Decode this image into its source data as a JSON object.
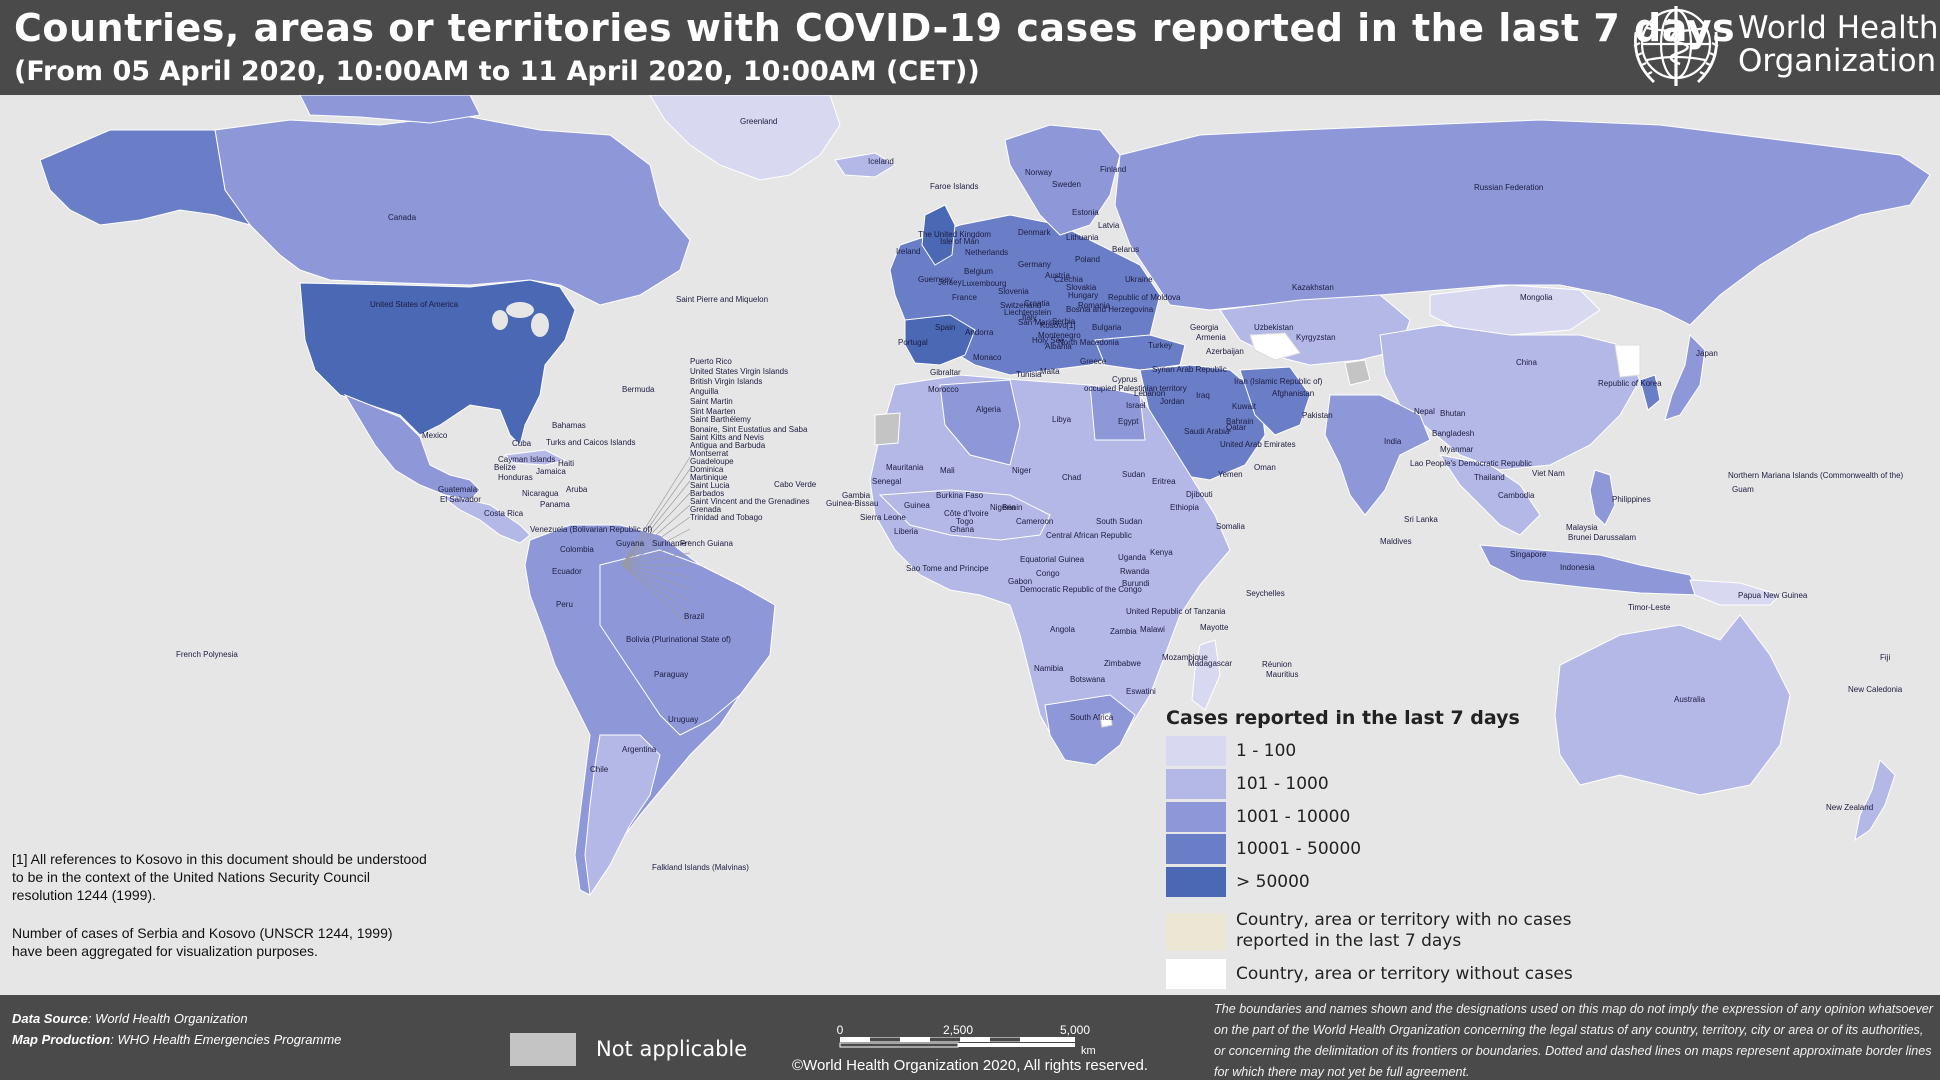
{
  "header": {
    "title": "Countries, areas or territories with COVID-19  cases reported in the last 7 days",
    "subtitle": "(From 05 April 2020, 10:00AM  to 11 April 2020, 10:00AM (CET))",
    "logo_text": "World Health\nOrganization"
  },
  "map": {
    "ocean_color": "#e6e6e6",
    "country_labels": [
      "Greenland",
      "Iceland",
      "Faroe Islands",
      "Norway",
      "Sweden",
      "Finland",
      "Estonia",
      "Latvia",
      "Lithuania",
      "Denmark",
      "The United Kingdom",
      "Ireland",
      "Netherlands",
      "Belarus",
      "Poland",
      "Germany",
      "Ukraine",
      "Czechia",
      "Slovakia",
      "Hungary",
      "Republic of Moldova",
      "Romania",
      "Bulgaria",
      "Serbia",
      "France",
      "Switzerland",
      "Italy",
      "Spain",
      "Portugal",
      "Andorra",
      "Greece",
      "Turkey",
      "Gibraltar",
      "Tunisia",
      "Malta",
      "Morocco",
      "Algeria",
      "Libya",
      "Egypt",
      "Cyprus",
      "Lebanon",
      "Syrian Arab Republic",
      "Israel",
      "Jordan",
      "Iraq",
      "Kuwait",
      "Bahrain",
      "Qatar",
      "Saudi Arabia",
      "United Arab Emirates",
      "Oman",
      "Yemen",
      "Georgia",
      "Armenia",
      "Azerbaijan",
      "Kazakhstan",
      "Uzbekistan",
      "Kyrgyzstan",
      "Iran (Islamic Republic of)",
      "Afghanistan",
      "Pakistan",
      "India",
      "Nepal",
      "Bhutan",
      "Bangladesh",
      "Sri Lanka",
      "Maldives",
      "Mongolia",
      "China",
      "Russian Federation",
      "Republic of Korea",
      "Japan",
      "Myanmar",
      "Lao People's Democratic Republic",
      "Thailand",
      "Viet Nam",
      "Cambodia",
      "Philippines",
      "Malaysia",
      "Singapore",
      "Brunei Darussalam",
      "Indonesia",
      "Timor-Leste",
      "Papua New Guinea",
      "Australia",
      "New Zealand",
      "Fiji",
      "New Caledonia",
      "Guam",
      "Northern Mariana Islands (Commonwealth of the)",
      "Canada",
      "United States of America",
      "Saint Pierre and Miquelon",
      "Bermuda",
      "Mexico",
      "Cuba",
      "Bahamas",
      "Turks and Caicos Islands",
      "Haiti",
      "Jamaica",
      "Cayman Islands",
      "Belize",
      "Honduras",
      "Guatemala",
      "El Salvador",
      "Nicaragua",
      "Costa Rica",
      "Panama",
      "Aruba",
      "Venezuela (Bolivarian Republic of)",
      "Colombia",
      "Ecuador",
      "Peru",
      "Brazil",
      "Bolivia (Plurinational State of)",
      "Paraguay",
      "Uruguay",
      "Argentina",
      "Chile",
      "Guyana",
      "Suriname",
      "French Guiana",
      "Falkland Islands (Malvinas)",
      "French Polynesia",
      "Puerto Rico",
      "United States Virgin Islands",
      "British Virgin Islands",
      "Anguilla",
      "Saint Martin",
      "Sint Maarten",
      "Saint Barthélemy",
      "Bonaire, Sint Eustatius and Saba",
      "Saint Kitts and Nevis",
      "Antigua and Barbuda",
      "Montserrat",
      "Guadeloupe",
      "Dominica",
      "Martinique",
      "Saint Lucia",
      "Barbados",
      "Saint Vincent and the Grenadines",
      "Grenada",
      "Trinidad and Tobago",
      "Cabo Verde",
      "Mauritania",
      "Mali",
      "Niger",
      "Chad",
      "Sudan",
      "Eritrea",
      "Djibouti",
      "Ethiopia",
      "Somalia",
      "Senegal",
      "Gambia",
      "Guinea-Bissau",
      "Guinea",
      "Sierra Leone",
      "Liberia",
      "Côte d'Ivoire",
      "Burkina Faso",
      "Ghana",
      "Togo",
      "Benin",
      "Nigeria",
      "Cameroon",
      "Central African Republic",
      "South Sudan",
      "Kenya",
      "Uganda",
      "Rwanda",
      "Burundi",
      "United Republic of Tanzania",
      "Democratic Republic of the Congo",
      "Congo",
      "Gabon",
      "Equatorial Guinea",
      "Sao Tome and Principe",
      "Angola",
      "Zambia",
      "Malawi",
      "Mozambique",
      "Zimbabwe",
      "Namibia",
      "Botswana",
      "South Africa",
      "Eswatini",
      "Madagascar",
      "Mauritius",
      "Réunion",
      "Mayotte",
      "Seychelles",
      "occupied Palestinian territory",
      "Monaco",
      "Kosovo[1]",
      "Montenegro",
      "Albania",
      "North Macedonia",
      "Croatia",
      "Slovenia",
      "Austria",
      "Belgium",
      "Luxembourg",
      "Jersey",
      "Guernsey",
      "Isle of Man",
      "Liechtenstein",
      "San Marino",
      "Holy See",
      "Bosnia and Herzegovina"
    ]
  },
  "notes": {
    "kosovo_line1": "[1] All references to Kosovo in this document should be understood",
    "kosovo_line2": "to be in the context of the United Nations Security Council",
    "kosovo_line3": "resolution 1244 (1999).",
    "serbia_line1": "Number of cases of Serbia and Kosovo (UNSCR 1244, 1999)",
    "serbia_line2": " have been aggregated for visualization purposes."
  },
  "legend": {
    "title": "Cases reported in the last 7 days",
    "items": [
      {
        "label": "1 - 100",
        "color": "#d8d8f0"
      },
      {
        "label": "101 - 1000",
        "color": "#b4b8e6"
      },
      {
        "label": "1001 - 10000",
        "color": "#8e98d8"
      },
      {
        "label": "10001 - 50000",
        "color": "#6a7ec8"
      },
      {
        "label": "> 50000",
        "color": "#4a68b4"
      }
    ],
    "no_cases_line1": "Country, area or territory with no cases",
    "no_cases_line2": "reported in the last 7 days",
    "no_cases_color": "#ece6d4",
    "without_cases": "Country, area or territory without cases",
    "without_cases_color": "#ffffff"
  },
  "footer": {
    "data_source_label": "Data Source",
    "data_source_value": ": World Health Organization",
    "map_production_label": "Map Production",
    "map_production_value": ": WHO Health Emergencies Programme",
    "not_applicable": "Not applicable",
    "not_applicable_color": "#c4c4c4",
    "scale_0": "0",
    "scale_2500": "2,500",
    "scale_5000": "5,000",
    "scale_unit": "km",
    "copyright": "©World Health Organization  2020,  All rights reserved.",
    "disclaimer": "The boundaries and names shown and the designations used on this map do not imply the expression of any opinion whatsoever on the part of the World Health Organization concerning the legal status of any country, territory, city or area or of its authorities, or concerning the delimitation of its frontiers or boundaries. Dotted and dashed lines on maps represent approximate border lines for which there may not yet be full agreement."
  }
}
